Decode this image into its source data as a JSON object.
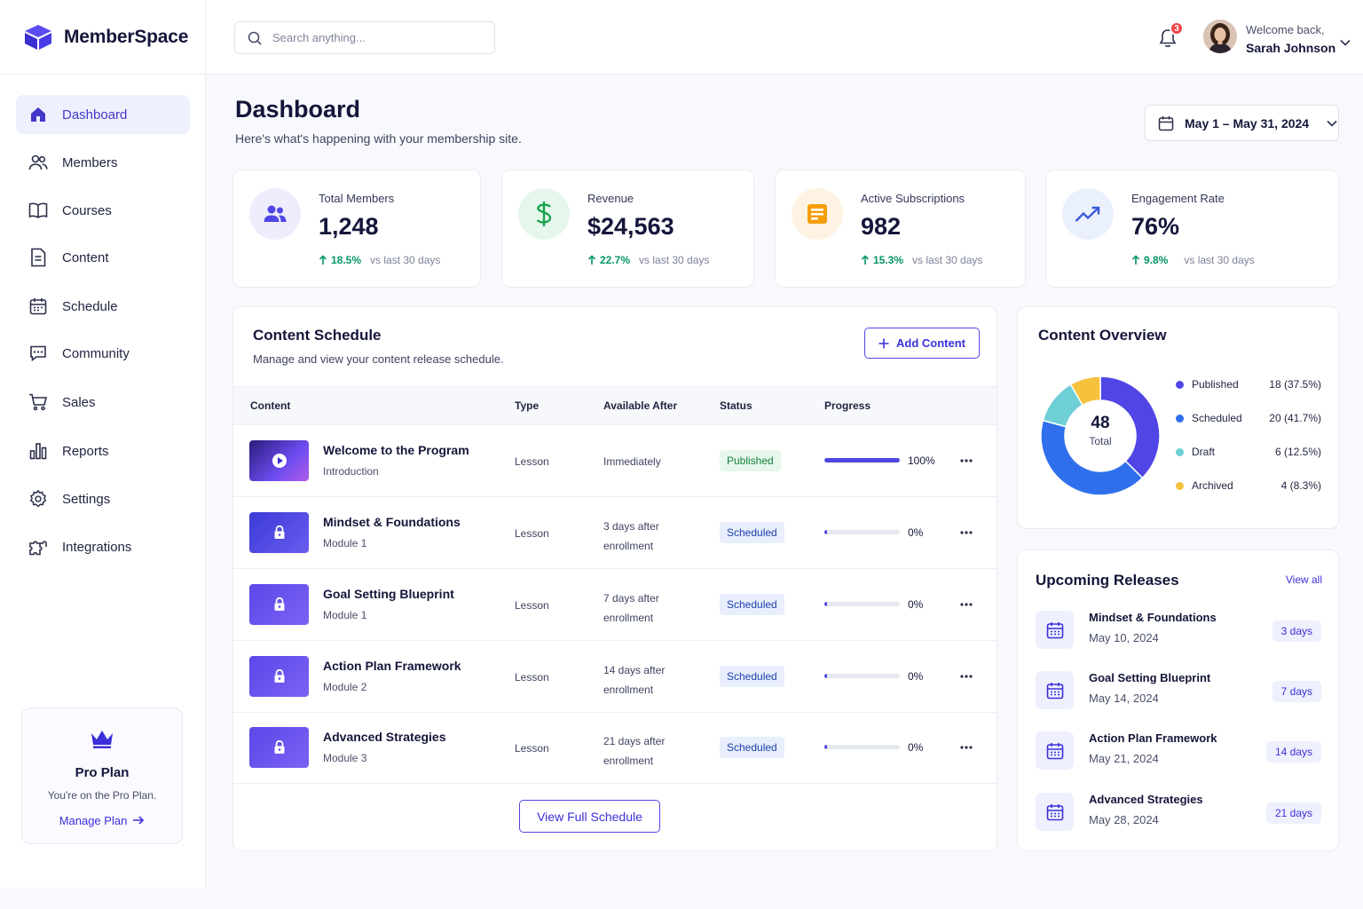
{
  "app": {
    "name": "MemberSpace"
  },
  "nav": {
    "items": [
      {
        "label": "Dashboard",
        "icon": "home-icon",
        "active": true
      },
      {
        "label": "Members",
        "icon": "users-icon"
      },
      {
        "label": "Courses",
        "icon": "book-icon"
      },
      {
        "label": "Content",
        "icon": "document-icon"
      },
      {
        "label": "Schedule",
        "icon": "calendar-icon"
      },
      {
        "label": "Community",
        "icon": "chat-icon"
      },
      {
        "label": "Sales",
        "icon": "cart-icon"
      },
      {
        "label": "Reports",
        "icon": "bar-chart-icon"
      },
      {
        "label": "Settings",
        "icon": "gear-icon"
      },
      {
        "label": "Integrations",
        "icon": "puzzle-icon"
      }
    ]
  },
  "plan": {
    "title": "Pro Plan",
    "subtitle": "You're on the Pro Plan.",
    "link": "Manage Plan"
  },
  "topbar": {
    "search_placeholder": "Search anything...",
    "notification_count": "3",
    "welcome": "Welcome back,",
    "user_name": "Sarah Johnson"
  },
  "header": {
    "title": "Dashboard",
    "subtitle": "Here's what's happening with your membership site.",
    "date_range": "May 1 – May 31, 2024"
  },
  "stats": [
    {
      "label": "Total Members",
      "value": "1,248",
      "trend": "18.5%",
      "note": "vs last 30 days",
      "icon": "users-icon",
      "color": "#4f46e5",
      "bg": "#eeedfd"
    },
    {
      "label": "Revenue",
      "value": "$24,563",
      "trend": "22.7%",
      "note": "vs last 30 days",
      "icon": "dollar-icon",
      "color": "#16a34a",
      "bg": "#e6f6ec"
    },
    {
      "label": "Active Subscriptions",
      "value": "982",
      "trend": "15.3%",
      "note": "vs last 30 days",
      "icon": "subscription-icon",
      "color": "#f59e0b",
      "bg": "#fef3e2"
    },
    {
      "label": "Engagement Rate",
      "value": "76%",
      "trend": "9.8%",
      "note": "vs last 30 days",
      "icon": "trend-icon",
      "color": "#3b5bdb",
      "bg": "#ebf0fd"
    }
  ],
  "schedule": {
    "title": "Content Schedule",
    "subtitle": "Manage and view your content release schedule.",
    "add_label": "Add Content",
    "columns": [
      "Content",
      "Type",
      "Available After",
      "Status",
      "Progress"
    ],
    "rows": [
      {
        "name": "Welcome to the Program",
        "sub": "Introduction",
        "type": "Lesson",
        "avail1": "Immediately",
        "avail2": "",
        "status": "Published",
        "progress": 100,
        "pct": "100%",
        "thumb": "play-icon"
      },
      {
        "name": "Mindset & Foundations",
        "sub": "Module 1",
        "type": "Lesson",
        "avail1": "3 days after",
        "avail2": "enrollment",
        "status": "Scheduled",
        "progress": 4,
        "pct": "0%",
        "thumb": "lock-icon"
      },
      {
        "name": "Goal Setting Blueprint",
        "sub": "Module 1",
        "type": "Lesson",
        "avail1": "7 days after",
        "avail2": "enrollment",
        "status": "Scheduled",
        "progress": 4,
        "pct": "0%",
        "thumb": "lock-icon"
      },
      {
        "name": "Action Plan Framework",
        "sub": "Module 2",
        "type": "Lesson",
        "avail1": "14 days after",
        "avail2": "enrollment",
        "status": "Scheduled",
        "progress": 4,
        "pct": "0%",
        "thumb": "lock-icon"
      },
      {
        "name": "Advanced Strategies",
        "sub": "Module 3",
        "type": "Lesson",
        "avail1": "21 days after",
        "avail2": "enrollment",
        "status": "Scheduled",
        "progress": 4,
        "pct": "0%",
        "thumb": "lock-icon"
      }
    ],
    "view_full": "View Full Schedule"
  },
  "overview": {
    "title": "Content Overview",
    "total": "48",
    "total_label": "Total",
    "items": [
      {
        "label": "Published",
        "value": "18 (37.5%)",
        "count": 18,
        "color": "#4f46e5"
      },
      {
        "label": "Scheduled",
        "value": "20 (41.7%)",
        "count": 20,
        "color": "#2f6fec"
      },
      {
        "label": "Draft",
        "value": "6 (12.5%)",
        "count": 6,
        "color": "#6ecfd6"
      },
      {
        "label": "Archived",
        "value": "4 (8.3%)",
        "count": 4,
        "color": "#f6c23e"
      }
    ]
  },
  "upcoming": {
    "title": "Upcoming Releases",
    "view_all": "View all",
    "items": [
      {
        "name": "Mindset & Foundations",
        "date": "May 10, 2024",
        "badge": "3 days"
      },
      {
        "name": "Goal Setting Blueprint",
        "date": "May 14, 2024",
        "badge": "7 days"
      },
      {
        "name": "Action Plan Framework",
        "date": "May 21, 2024",
        "badge": "14 days"
      },
      {
        "name": "Advanced Strategies",
        "date": "May 28, 2024",
        "badge": "21 days"
      }
    ]
  }
}
